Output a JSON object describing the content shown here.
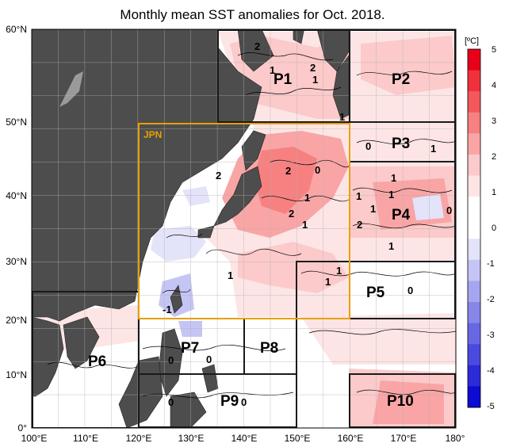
{
  "title": "Monthly mean SST anomalies for Oct. 2018.",
  "axes": {
    "lat_labels": [
      "60°N",
      "50°N",
      "40°N",
      "30°N",
      "20°N",
      "10°N",
      "0°"
    ],
    "lon_labels": [
      "100°E",
      "110°E",
      "120°E",
      "130°E",
      "140°E",
      "150°E",
      "160°E",
      "170°E",
      "180°"
    ],
    "lat_range": [
      0,
      60
    ],
    "lon_range": [
      100,
      180
    ]
  },
  "regions": [
    {
      "label": "P1"
    },
    {
      "label": "P2"
    },
    {
      "label": "P3"
    },
    {
      "label": "P4"
    },
    {
      "label": "P5"
    },
    {
      "label": "P6"
    },
    {
      "label": "P7"
    },
    {
      "label": "P8"
    },
    {
      "label": "P9"
    },
    {
      "label": "P10"
    }
  ],
  "jpn_label": "JPN",
  "contour_labels": [
    "2",
    "1",
    "2",
    "1",
    "1",
    "0",
    "1",
    "2",
    "2",
    "0",
    "1",
    "1",
    "1",
    "2",
    "1",
    "2",
    "1",
    "0",
    "1",
    "1",
    "1",
    "1",
    "1",
    "-1",
    "0",
    "0",
    "0",
    "0",
    "0"
  ],
  "colorbar": {
    "unit": "[ºC]",
    "ticks": [
      "5",
      "4",
      "3",
      "2",
      "1",
      "0",
      "-1",
      "-2",
      "-3",
      "-4",
      "-5"
    ],
    "colors": [
      "#e8001a",
      "#f0303a",
      "#f4575c",
      "#f78080",
      "#f9a5a5",
      "#fccaca",
      "#fde5e5",
      "#ffffff",
      "#ffffff",
      "#e3e3fa",
      "#c5c5f5",
      "#a6a6f0",
      "#8787ea",
      "#6868e4",
      "#4a4ade",
      "#2b2bd8",
      "#0c0cd2"
    ],
    "land_color": "#4d4d4d",
    "box_color": "#1a1a1a",
    "jpn_box_color": "#e8a000"
  }
}
